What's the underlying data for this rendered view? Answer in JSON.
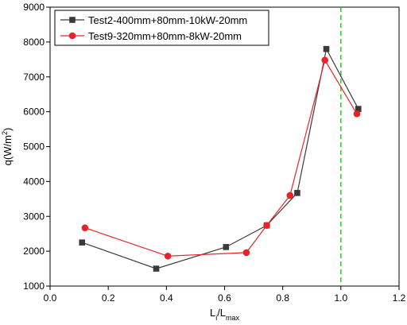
{
  "chart_data": {
    "type": "line",
    "title": "",
    "xlabel": {
      "main": "L",
      "sub1": "i",
      "sep": "/L",
      "sub2": "max"
    },
    "ylabel": {
      "main": "q(W/m",
      "sup": "2",
      "end": ")"
    },
    "xlim": [
      0.0,
      1.2
    ],
    "ylim": [
      1000,
      9000
    ],
    "xticks": [
      0.0,
      0.2,
      0.4,
      0.6,
      0.8,
      1.0,
      1.2
    ],
    "xtick_labels": [
      "0.0",
      "0.2",
      "0.4",
      "0.6",
      "0.8",
      "1.0",
      "1.2"
    ],
    "yticks": [
      1000,
      2000,
      3000,
      4000,
      5000,
      6000,
      7000,
      8000,
      9000
    ],
    "ytick_labels": [
      "1000",
      "2000",
      "3000",
      "4000",
      "5000",
      "6000",
      "7000",
      "8000",
      "9000"
    ],
    "grid": false,
    "legend_position": "top-left",
    "reference_line": {
      "x": 1.0,
      "color": "#22cc22",
      "style": "dashed"
    },
    "series": [
      {
        "name": "Test2-400mm+80mm-10kW-20mm",
        "color": "#3a3a3a",
        "marker": "square",
        "points": [
          {
            "x": 0.11,
            "y": 2250
          },
          {
            "x": 0.365,
            "y": 1500
          },
          {
            "x": 0.605,
            "y": 2120
          },
          {
            "x": 0.745,
            "y": 2740
          },
          {
            "x": 0.85,
            "y": 3670
          },
          {
            "x": 0.95,
            "y": 7800
          },
          {
            "x": 1.06,
            "y": 6080
          }
        ]
      },
      {
        "name": "Test9-320mm+80mm-8kW-20mm",
        "color": "#e8242a",
        "marker": "circle",
        "points": [
          {
            "x": 0.12,
            "y": 2670
          },
          {
            "x": 0.405,
            "y": 1860
          },
          {
            "x": 0.675,
            "y": 1960
          },
          {
            "x": 0.745,
            "y": 2740
          },
          {
            "x": 0.825,
            "y": 3600
          },
          {
            "x": 0.945,
            "y": 7480
          },
          {
            "x": 1.055,
            "y": 5940
          }
        ]
      }
    ]
  }
}
